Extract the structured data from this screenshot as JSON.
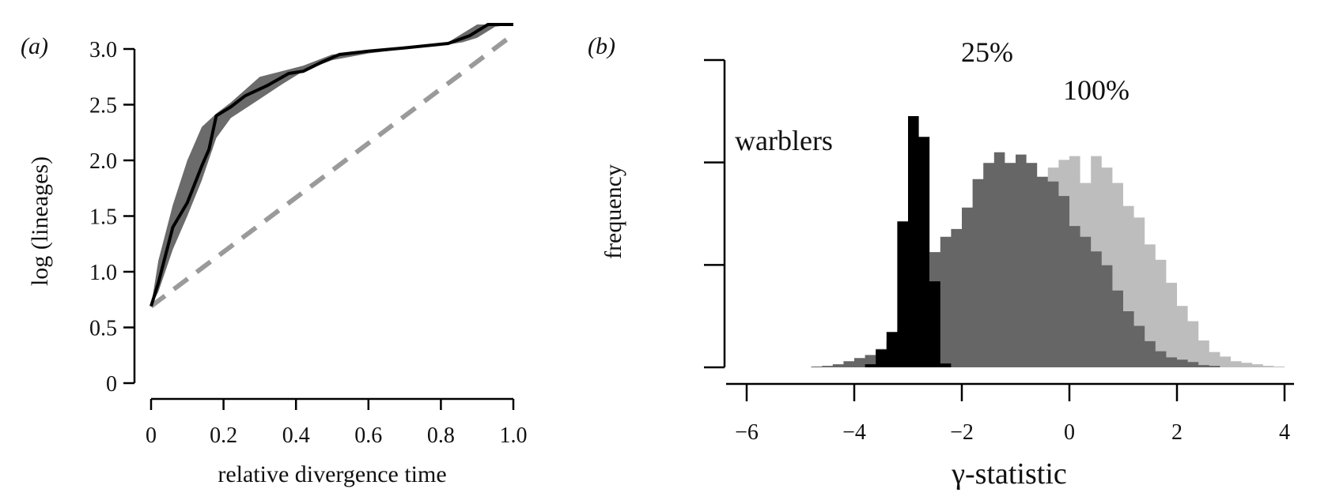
{
  "chart_data": [
    {
      "panel_label": "(a)",
      "type": "line",
      "xlabel": "relative divergence time",
      "ylabel": "log (lineages)",
      "xlim": [
        0,
        1.0
      ],
      "ylim": [
        0,
        3.0
      ],
      "x_ticks": [
        "0",
        "0.2",
        "0.4",
        "0.6",
        "0.8",
        "1.0"
      ],
      "y_ticks": [
        "0",
        "0.5",
        "1.0",
        "1.5",
        "2.0",
        "2.5",
        "3.0"
      ],
      "series": [
        {
          "style": "step line, black",
          "color": "#000000",
          "x": [
            0,
            0.02,
            0.06,
            0.1,
            0.14,
            0.16,
            0.18,
            0.22,
            0.26,
            0.32,
            0.38,
            0.42,
            0.47,
            0.52,
            0.6,
            0.7,
            0.82,
            0.88,
            0.93,
            1.0
          ],
          "y": [
            0.69,
            0.9,
            1.4,
            1.62,
            1.95,
            2.1,
            2.4,
            2.48,
            2.58,
            2.67,
            2.78,
            2.8,
            2.88,
            2.95,
            2.98,
            3.01,
            3.05,
            3.12,
            3.22,
            3.22
          ]
        },
        {
          "style": "confidence band, dark grey",
          "color": "#6b6b6b",
          "x": [
            0,
            0.02,
            0.06,
            0.1,
            0.14,
            0.18,
            0.22,
            0.3,
            0.36,
            0.42,
            0.5,
            0.6,
            0.7,
            0.82,
            0.86,
            0.9,
            0.95,
            1.0
          ],
          "upper": [
            0.69,
            1.1,
            1.6,
            2.0,
            2.3,
            2.42,
            2.52,
            2.75,
            2.8,
            2.85,
            2.95,
            2.98,
            3.01,
            3.06,
            3.14,
            3.22,
            3.22,
            3.22
          ],
          "lower": [
            0.69,
            0.82,
            1.2,
            1.5,
            1.82,
            2.2,
            2.38,
            2.55,
            2.68,
            2.8,
            2.9,
            2.96,
            3.0,
            3.04,
            3.06,
            3.1,
            3.2,
            3.22
          ]
        },
        {
          "style": "dashed, light grey",
          "color": "#9a9a9a",
          "x": [
            0,
            1.0
          ],
          "y": [
            0.69,
            3.13
          ]
        }
      ]
    },
    {
      "panel_label": "(b)",
      "type": "histogram",
      "xlabel": "γ-statistic",
      "ylabel": "frequency",
      "xlim": [
        -6.4,
        4.4
      ],
      "x_ticks": [
        "−6",
        "−4",
        "−2",
        "0",
        "2",
        "4"
      ],
      "y_tick_count": 4,
      "y_max": 40,
      "bin_width": 0.2,
      "annotations": [
        "warblers",
        "25%",
        "100%"
      ],
      "series": [
        {
          "label": "100%",
          "color": "#bdbdbd",
          "start": -0.8,
          "counts": [
            20,
            23,
            26,
            27,
            27.5,
            24,
            27.5,
            26,
            24,
            21,
            19.5,
            16,
            14,
            11,
            8,
            6,
            3.5,
            2,
            1.4,
            0.8,
            0.6,
            0.4,
            0.2,
            0.1
          ]
        },
        {
          "label": "25%",
          "color": "#666666",
          "start": -4.8,
          "counts": [
            0.1,
            0.2,
            0.4,
            0.8,
            1.2,
            1.6,
            2.4,
            3.4,
            5,
            7.3,
            10.8,
            15,
            17,
            18,
            20.8,
            24.5,
            26.6,
            28,
            26.6,
            27.7,
            26.6,
            24.8,
            24.2,
            22.3,
            18.4,
            17,
            15.1,
            13.3,
            10,
            7.3,
            5.4,
            3.4,
            2.1,
            1.3,
            1,
            0.7,
            0.3,
            0.2
          ]
        },
        {
          "label": "warblers",
          "color": "#000000",
          "start": -3.8,
          "counts": [
            0.4,
            2.3,
            4.6,
            19,
            32.7,
            30,
            11.2,
            0.5
          ]
        }
      ]
    }
  ]
}
